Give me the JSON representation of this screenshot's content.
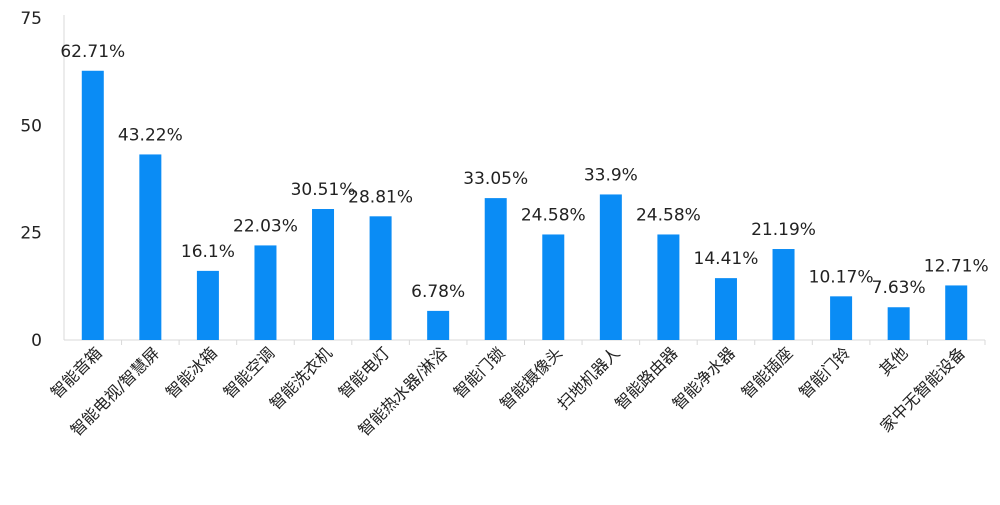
{
  "chart_data": {
    "type": "bar",
    "title": "",
    "xlabel": "",
    "ylabel": "",
    "ylim": [
      0,
      75
    ],
    "yticks": [
      0,
      25,
      50,
      75
    ],
    "grid": false,
    "legend": "none",
    "bar_color": "#0A8CF5",
    "categories": [
      "智能音箱",
      "智能电视/智慧屏",
      "智能冰箱",
      "智能空调",
      "智能洗衣机",
      "智能电灯",
      "智能热水器/淋浴",
      "智能门锁",
      "智能摄像头",
      "扫地机器人",
      "智能路由器",
      "智能净水器",
      "智能插座",
      "智能门铃",
      "其他",
      "家中无智能设备"
    ],
    "values": [
      62.71,
      43.22,
      16.1,
      22.03,
      30.51,
      28.81,
      6.78,
      33.05,
      24.58,
      33.9,
      24.58,
      14.41,
      21.19,
      10.17,
      7.63,
      12.71
    ],
    "data_labels": [
      "62.71%",
      "43.22%",
      "16.1%",
      "22.03%",
      "30.51%",
      "28.81%",
      "6.78%",
      "33.05%",
      "24.58%",
      "33.9%",
      "24.58%",
      "14.41%",
      "21.19%",
      "10.17%",
      "7.63%",
      "12.71%"
    ]
  }
}
